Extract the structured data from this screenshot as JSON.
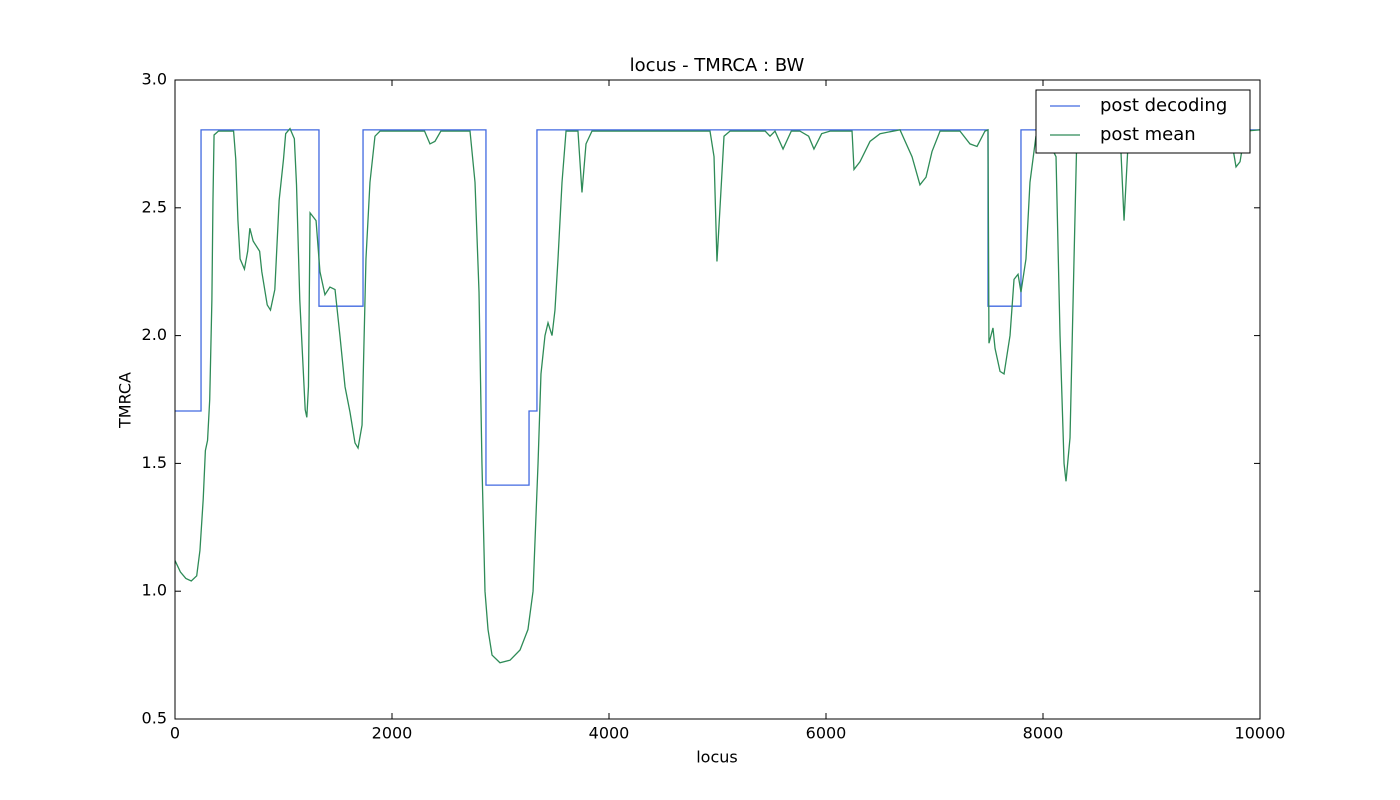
{
  "chart_data": {
    "type": "line",
    "title": "locus - TMRCA : BW",
    "xlabel": "locus",
    "ylabel": "TMRCA",
    "xlim": [
      0,
      10000
    ],
    "ylim": [
      0.5,
      3.0
    ],
    "xticks": [
      0,
      2000,
      4000,
      6000,
      8000,
      10000
    ],
    "yticks": [
      0.5,
      {
        "value": 1.0,
        "label": "1.0"
      },
      1.5,
      {
        "value": 2.0,
        "label": "2.0"
      },
      2.5,
      {
        "value": 3.0,
        "label": "3.0"
      }
    ],
    "legend": "upper right",
    "series": [
      {
        "name": "post decoding",
        "color": "#4169e1",
        "drawstyle": "steps-post",
        "x": [
          0,
          240,
          1327,
          1733,
          2866,
          3263,
          3336,
          7493,
          7797,
          10000
        ],
        "values": [
          1.705,
          2.805,
          2.115,
          2.805,
          1.415,
          1.705,
          2.805,
          2.115,
          2.805,
          2.805
        ]
      },
      {
        "name": "post mean",
        "color": "#2e8b57",
        "x": [
          0,
          50,
          100,
          150,
          200,
          230,
          260,
          280,
          300,
          320,
          340,
          350,
          360,
          400,
          540,
          560,
          580,
          600,
          640,
          670,
          690,
          720,
          780,
          800,
          850,
          880,
          920,
          960,
          1000,
          1020,
          1060,
          1100,
          1120,
          1150,
          1200,
          1215,
          1230,
          1245,
          1300,
          1336,
          1382,
          1428,
          1475,
          1520,
          1567,
          1613,
          1659,
          1687,
          1724,
          1760,
          1797,
          1843,
          1889,
          2300,
          2350,
          2396,
          2450,
          2719,
          2765,
          2802,
          2829,
          2857,
          2885,
          2922,
          2995,
          3088,
          3180,
          3253,
          3300,
          3346,
          3373,
          3410,
          3438,
          3475,
          3502,
          3530,
          3567,
          3604,
          3714,
          3751,
          3788,
          3843,
          4931,
          4968,
          4995,
          5023,
          5060,
          5115,
          5440,
          5484,
          5530,
          5604,
          5680,
          5760,
          5840,
          5889,
          5960,
          6037,
          6240,
          6258,
          6313,
          6406,
          6498,
          6682,
          6793,
          6866,
          6922,
          6977,
          7051,
          7235,
          7327,
          7392,
          7465,
          7493,
          7502,
          7539,
          7558,
          7604,
          7641,
          7696,
          7733,
          7770,
          7797,
          7843,
          7880,
          7935,
          8000,
          8120,
          8157,
          8194,
          8212,
          8249,
          8286,
          8313,
          8710,
          8747,
          8784,
          8894,
          9724,
          9779,
          9816,
          9862,
          10000
        ],
        "values": [
          1.12,
          1.075,
          1.05,
          1.04,
          1.06,
          1.16,
          1.36,
          1.55,
          1.59,
          1.75,
          2.14,
          2.53,
          2.785,
          2.8,
          2.8,
          2.69,
          2.45,
          2.3,
          2.26,
          2.33,
          2.42,
          2.37,
          2.33,
          2.25,
          2.12,
          2.1,
          2.18,
          2.53,
          2.69,
          2.79,
          2.81,
          2.77,
          2.59,
          2.14,
          1.71,
          1.68,
          1.8,
          2.48,
          2.45,
          2.25,
          2.16,
          2.19,
          2.18,
          2.0,
          1.8,
          1.7,
          1.58,
          1.56,
          1.65,
          2.3,
          2.6,
          2.78,
          2.8,
          2.8,
          2.75,
          2.76,
          2.8,
          2.8,
          2.6,
          2.17,
          1.5,
          1.0,
          0.85,
          0.75,
          0.72,
          0.73,
          0.77,
          0.85,
          1.0,
          1.5,
          1.85,
          2.0,
          2.05,
          2.0,
          2.1,
          2.3,
          2.6,
          2.8,
          2.8,
          2.56,
          2.75,
          2.8,
          2.8,
          2.7,
          2.29,
          2.5,
          2.78,
          2.8,
          2.8,
          2.78,
          2.8,
          2.73,
          2.8,
          2.8,
          2.78,
          2.73,
          2.79,
          2.8,
          2.8,
          2.65,
          2.68,
          2.76,
          2.79,
          2.805,
          2.7,
          2.59,
          2.62,
          2.72,
          2.8,
          2.8,
          2.75,
          2.74,
          2.8,
          2.805,
          1.97,
          2.03,
          1.95,
          1.86,
          1.85,
          2.0,
          2.22,
          2.24,
          2.17,
          2.3,
          2.6,
          2.78,
          2.8,
          2.7,
          2.0,
          1.5,
          1.43,
          1.6,
          2.3,
          2.8,
          2.8,
          2.45,
          2.75,
          2.8,
          2.8,
          2.66,
          2.68,
          2.8,
          2.805
        ]
      }
    ]
  }
}
